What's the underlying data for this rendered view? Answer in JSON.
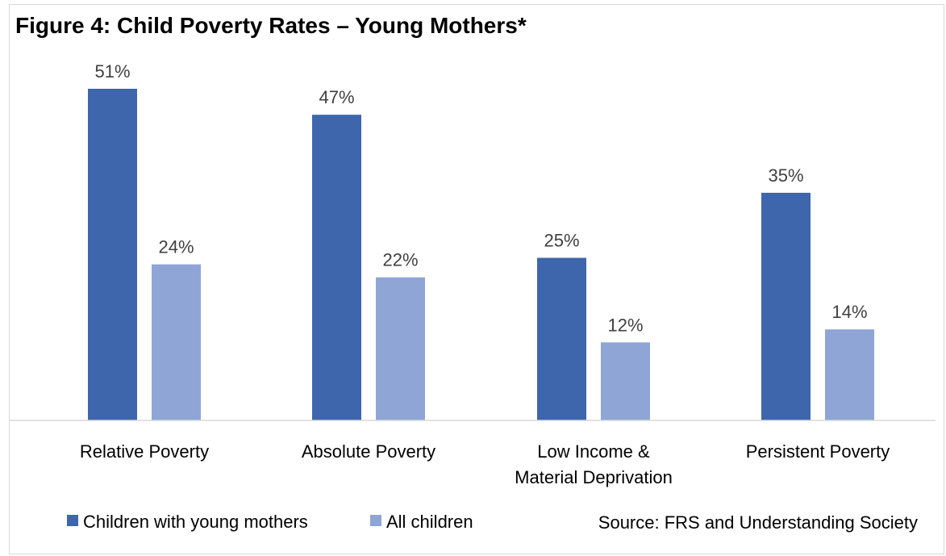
{
  "chart_data": {
    "type": "bar",
    "title": "Figure 4: Child Poverty Rates – Young Mothers*",
    "categories": [
      [
        "Relative Poverty"
      ],
      [
        "Absolute Poverty"
      ],
      [
        "Low Income &",
        "Material Deprivation"
      ],
      [
        "Persistent Poverty"
      ]
    ],
    "series": [
      {
        "name": "Children with young mothers",
        "color": "#3d66ad",
        "values": [
          51,
          47,
          25,
          35
        ],
        "labels": [
          "51%",
          "47%",
          "25%",
          "35%"
        ]
      },
      {
        "name": "All children",
        "color": "#8fa5d6",
        "values": [
          24,
          22,
          12,
          14
        ],
        "labels": [
          "24%",
          "22%",
          "12%",
          "14%"
        ]
      }
    ],
    "ylim": [
      0,
      51
    ],
    "grid": false,
    "legend_position": "bottom-left",
    "source": "Source: FRS and Understanding Society"
  }
}
